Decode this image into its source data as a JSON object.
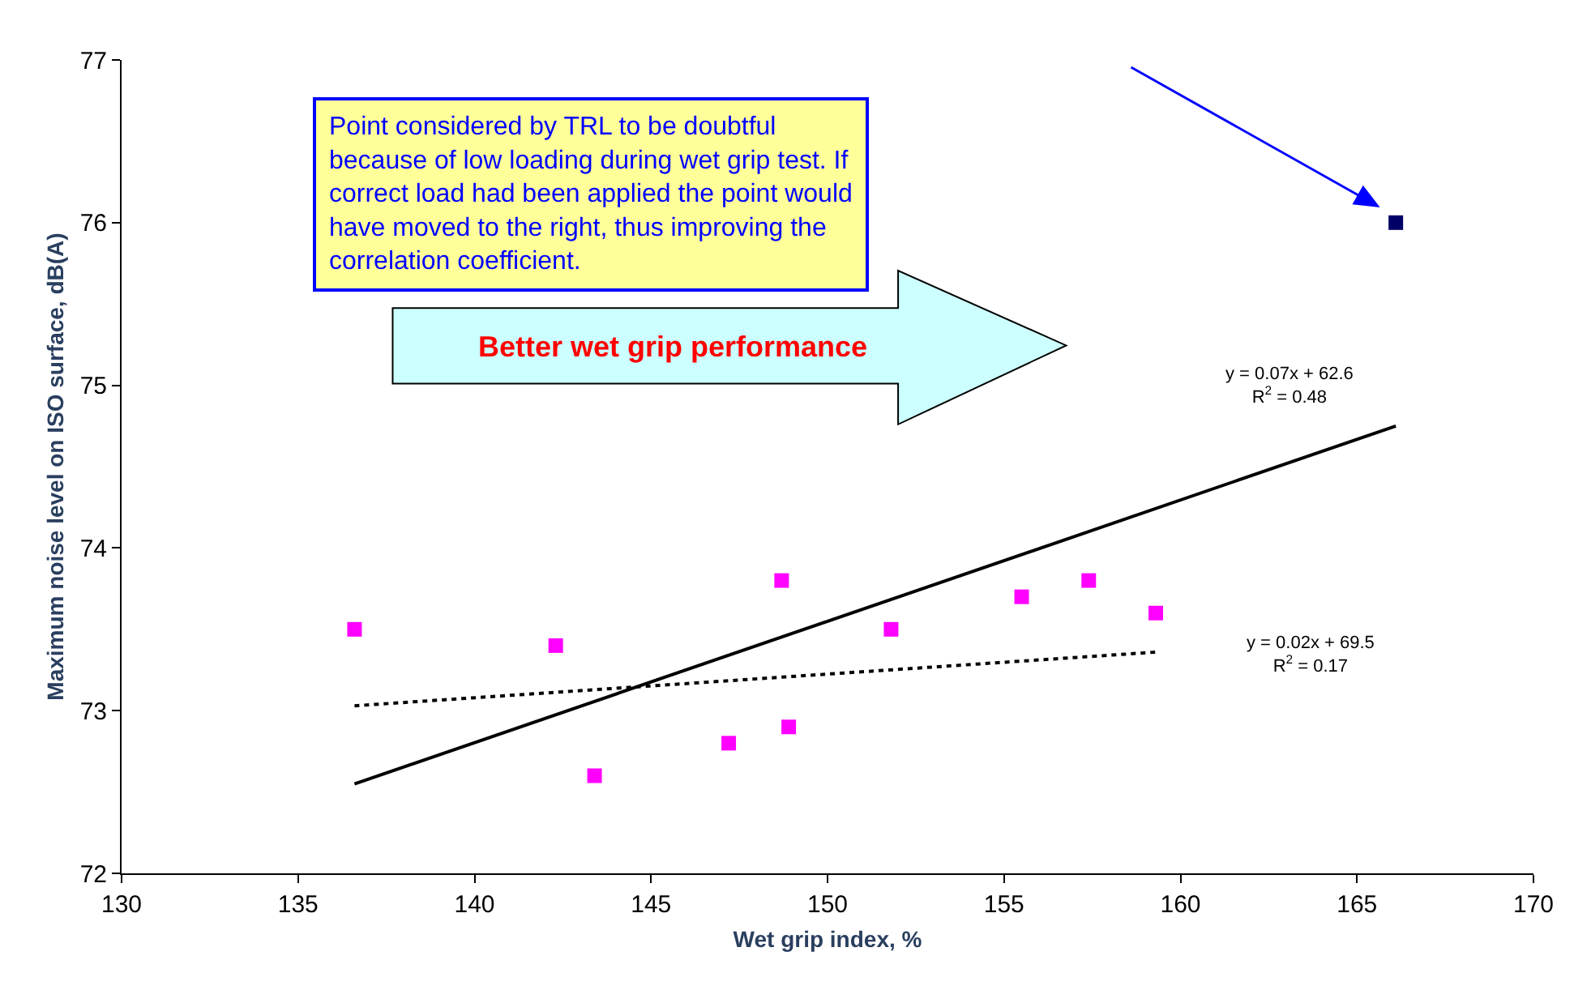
{
  "chart_data": {
    "type": "scatter",
    "xlabel": "Wet grip index, %",
    "ylabel": "Maximum noise level on ISO surface, dB(A)",
    "xlim": [
      130,
      170
    ],
    "xticks": [
      130,
      135,
      140,
      145,
      150,
      155,
      160,
      165,
      170
    ],
    "ylim": [
      72,
      77
    ],
    "yticks": [
      72,
      73,
      74,
      75,
      76,
      77
    ],
    "grid": false,
    "marker": "square",
    "series": [
      {
        "color": "#ff00ff",
        "x": [
          136.6,
          142.3,
          143.4,
          147.2,
          148.7,
          148.9,
          151.8,
          155.5,
          157.4,
          159.3
        ],
        "values": [
          73.5,
          73.4,
          72.6,
          72.8,
          73.8,
          72.9,
          73.5,
          73.7,
          73.8,
          73.6
        ]
      },
      {
        "color": "#000066",
        "x": [
          166.1
        ],
        "values": [
          76.0
        ]
      },
      {
        "type": "line",
        "marker": "none",
        "color": "#000000",
        "line_style": "solid",
        "x": [
          136.6,
          166.1
        ],
        "values": [
          72.55,
          74.75
        ]
      },
      {
        "type": "line",
        "marker": "none",
        "color": "#000000",
        "line_style": "dotted",
        "x": [
          136.6,
          159.3
        ],
        "values": [
          73.03,
          73.36
        ]
      }
    ],
    "annotations": [
      "Point considered by TRL to be doubtful\nbecause of low loading during wet grip test. If\ncorrect load had been applied the point would\nhave moved to the right, thus improving the\ncorrelation coefficient.",
      "Better wet grip performance",
      "y = 0.07x + 62.6\nR$^{2}$ = 0.48",
      "y = 0.02x + 69.5\nR$^{2}$ = 0.17"
    ]
  }
}
